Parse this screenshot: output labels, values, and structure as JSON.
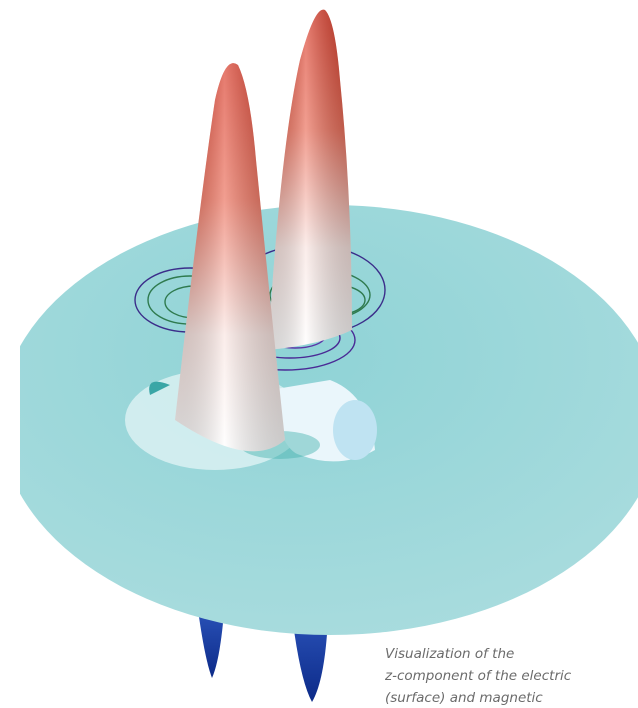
{
  "caption": {
    "lines": [
      "Visualization of the",
      "z-component of the electric",
      "(surface) and magnetic"
    ]
  }
}
